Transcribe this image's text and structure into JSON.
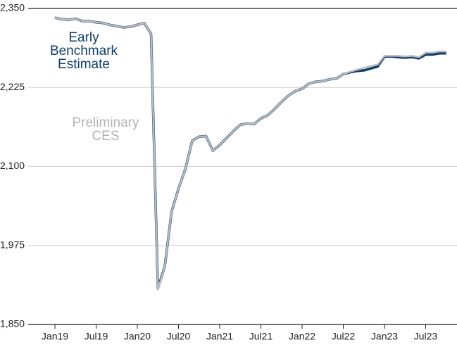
{
  "chart_data": {
    "type": "line",
    "x": [
      "Jan19",
      null,
      null,
      null,
      null,
      null,
      "Jul19",
      null,
      null,
      null,
      null,
      null,
      "Jan20",
      null,
      null,
      null,
      null,
      null,
      "Jul20",
      null,
      null,
      null,
      null,
      null,
      "Jan21",
      null,
      null,
      null,
      null,
      null,
      "Jul21",
      null,
      null,
      null,
      null,
      null,
      "Jan22",
      null,
      null,
      null,
      null,
      null,
      "Jul22",
      null,
      null,
      null,
      null,
      null,
      "Jan23",
      null,
      null,
      null,
      null,
      null,
      "Jul23",
      null,
      null,
      null
    ],
    "series": [
      {
        "name": "Early Benchmark Estimate",
        "color": "#0e3d6b",
        "values": [
          2335.5,
          2333,
          2332,
          2334,
          2330,
          2330,
          2328,
          2327,
          2324,
          2322,
          2320,
          2321,
          2324,
          2327,
          2310,
          1907,
          1942,
          2029,
          2065,
          2096,
          2141,
          2147,
          2148,
          2125,
          2134,
          2145,
          2156,
          2166,
          2168,
          2167,
          2176,
          2181,
          2191,
          2202,
          2212,
          2219,
          2223,
          2231,
          2234,
          2235,
          2238,
          2239,
          2246,
          2249,
          2251,
          2252,
          2255,
          2258,
          2274,
          2274,
          2273,
          2272,
          2273,
          2271,
          2277,
          2277,
          2279,
          2279
        ]
      },
      {
        "name": "Preliminary CES",
        "color": "#bdbdbd",
        "values": [
          2335.5,
          2333,
          2332,
          2334,
          2330,
          2330,
          2328,
          2327,
          2324,
          2322,
          2320,
          2321,
          2324,
          2327,
          2310,
          1905,
          1942,
          2029,
          2065,
          2096,
          2141,
          2147,
          2148,
          2125,
          2134,
          2145,
          2156,
          2166,
          2168,
          2167,
          2176,
          2181,
          2191,
          2202,
          2212,
          2219,
          2223,
          2231,
          2234,
          2235,
          2238,
          2239,
          2246,
          2250,
          2253,
          2256,
          2259,
          2261,
          2275,
          2275,
          2275,
          2274,
          2275,
          2273,
          2280,
          2280,
          2282,
          2282
        ]
      }
    ],
    "ylim": [
      1850,
      2350
    ],
    "yticks": [
      {
        "value": 1850,
        "label": "1,850"
      },
      {
        "value": 1975,
        "label": "1,975"
      },
      {
        "value": 2100,
        "label": "2,100"
      },
      {
        "value": 2225,
        "label": "2,225"
      },
      {
        "value": 2350,
        "label": "2,350"
      }
    ],
    "grid": true
  }
}
